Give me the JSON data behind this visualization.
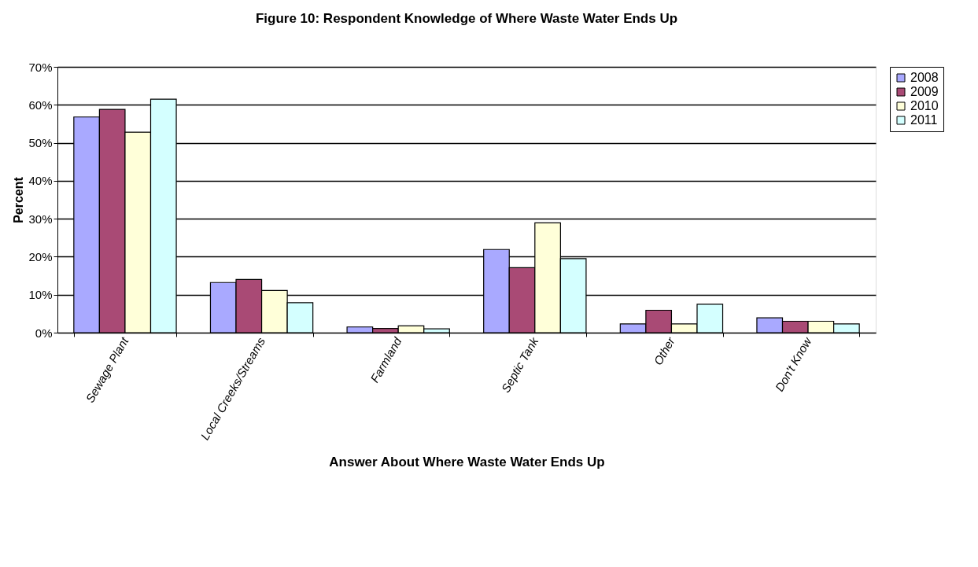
{
  "chart_data": {
    "type": "bar",
    "title": "Figure 10:  Respondent Knowledge of Where Waste Water Ends Up",
    "xlabel": "Answer About Where Waste Water Ends Up",
    "ylabel": "Percent",
    "categories": [
      "Sewage Plant",
      "Local Creeks/Streams",
      "Farmland",
      "Septic Tank",
      "Other",
      "Don't Know"
    ],
    "series": [
      {
        "name": "2008",
        "color": "#a9a9ff",
        "values": [
          56.8,
          13.2,
          1.5,
          21.9,
          2.3,
          3.9
        ]
      },
      {
        "name": "2009",
        "color": "#a94a75",
        "values": [
          58.8,
          14.0,
          1.1,
          17.1,
          5.9,
          3.0
        ]
      },
      {
        "name": "2010",
        "color": "#ffffd9",
        "values": [
          52.8,
          11.1,
          1.8,
          28.9,
          2.3,
          3.0
        ]
      },
      {
        "name": "2011",
        "color": "#d4ffff",
        "values": [
          61.5,
          7.9,
          1.0,
          19.5,
          7.5,
          2.3
        ]
      }
    ],
    "ylim": [
      0,
      70
    ],
    "yticks": [
      {
        "value": 0,
        "label": "0%"
      },
      {
        "value": 10,
        "label": "10%"
      },
      {
        "value": 20,
        "label": "20%"
      },
      {
        "value": 30,
        "label": "30%"
      },
      {
        "value": 40,
        "label": "40%"
      },
      {
        "value": 50,
        "label": "50%"
      },
      {
        "value": 60,
        "label": "60%"
      },
      {
        "value": 70,
        "label": "70%"
      }
    ],
    "grid": "y",
    "legend": "right"
  }
}
